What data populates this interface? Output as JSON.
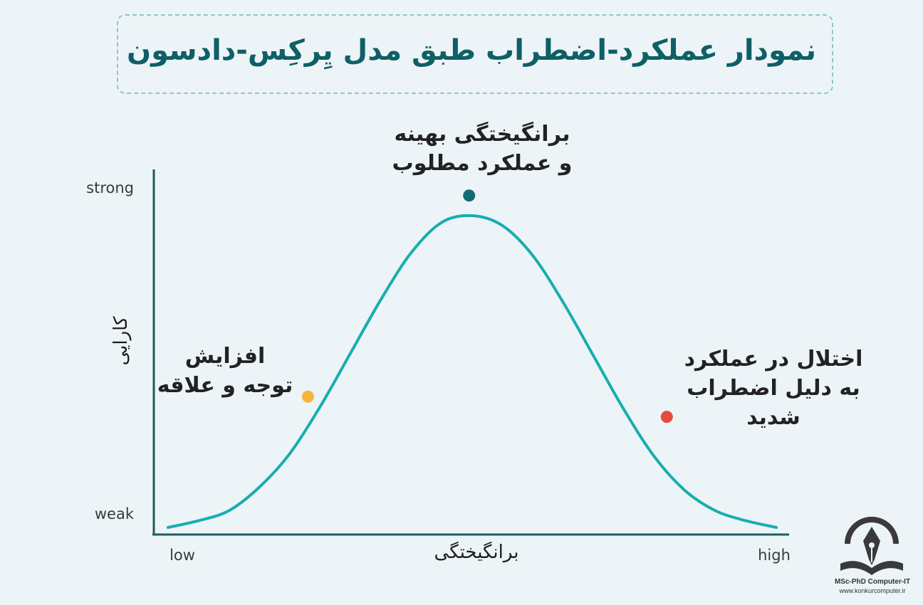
{
  "title": "نمودار عملکرد-اضطراب طبق مدل یِرکِس-دادسون",
  "colors": {
    "curve": "#17aeb0",
    "axis": "#1e5b62",
    "peak_point": "#136b74",
    "low_point": "#f5b53c",
    "high_point": "#e64b3c",
    "title": "#0f5f66"
  },
  "chart_data": {
    "type": "line",
    "title": "نمودار عملکرد-اضطراب طبق مدل یِرکِس-دادسون",
    "xlabel": "برانگیختگی",
    "ylabel": "کارایی",
    "x_tick_labels": [
      "low",
      "high"
    ],
    "y_tick_labels": [
      "weak",
      "strong"
    ],
    "xlim": [
      0,
      1
    ],
    "ylim": [
      0,
      1
    ],
    "grid": false,
    "series": [
      {
        "x": [
          0.0,
          0.05,
          0.1,
          0.15,
          0.2,
          0.25,
          0.3,
          0.35,
          0.4,
          0.45,
          0.5,
          0.55,
          0.6,
          0.65,
          0.7,
          0.75,
          0.8,
          0.85,
          0.9,
          0.95,
          1.0
        ],
        "y": [
          0.0,
          0.02,
          0.05,
          0.12,
          0.22,
          0.36,
          0.52,
          0.68,
          0.82,
          0.91,
          0.93,
          0.9,
          0.81,
          0.67,
          0.51,
          0.35,
          0.21,
          0.11,
          0.05,
          0.02,
          0.0
        ]
      }
    ],
    "annotations": [
      {
        "id": "low",
        "x": 0.23,
        "y": 0.39,
        "color": "#f5b53c",
        "lines": [
          "افزایش",
          "توجه و علاقه"
        ]
      },
      {
        "id": "peak",
        "x": 0.495,
        "y": 0.99,
        "color": "#136b74",
        "lines": [
          "برانگیختگی بهینه",
          "و عملکرد مطلوب"
        ]
      },
      {
        "id": "high",
        "x": 0.82,
        "y": 0.33,
        "color": "#e64b3c",
        "lines": [
          "اختلال در عملکرد",
          "به دلیل اضطراب",
          "شدید"
        ]
      }
    ]
  },
  "logo": {
    "name": "MSc-PhD Computer-IT",
    "site": "www.konkurcomputer.ir"
  }
}
